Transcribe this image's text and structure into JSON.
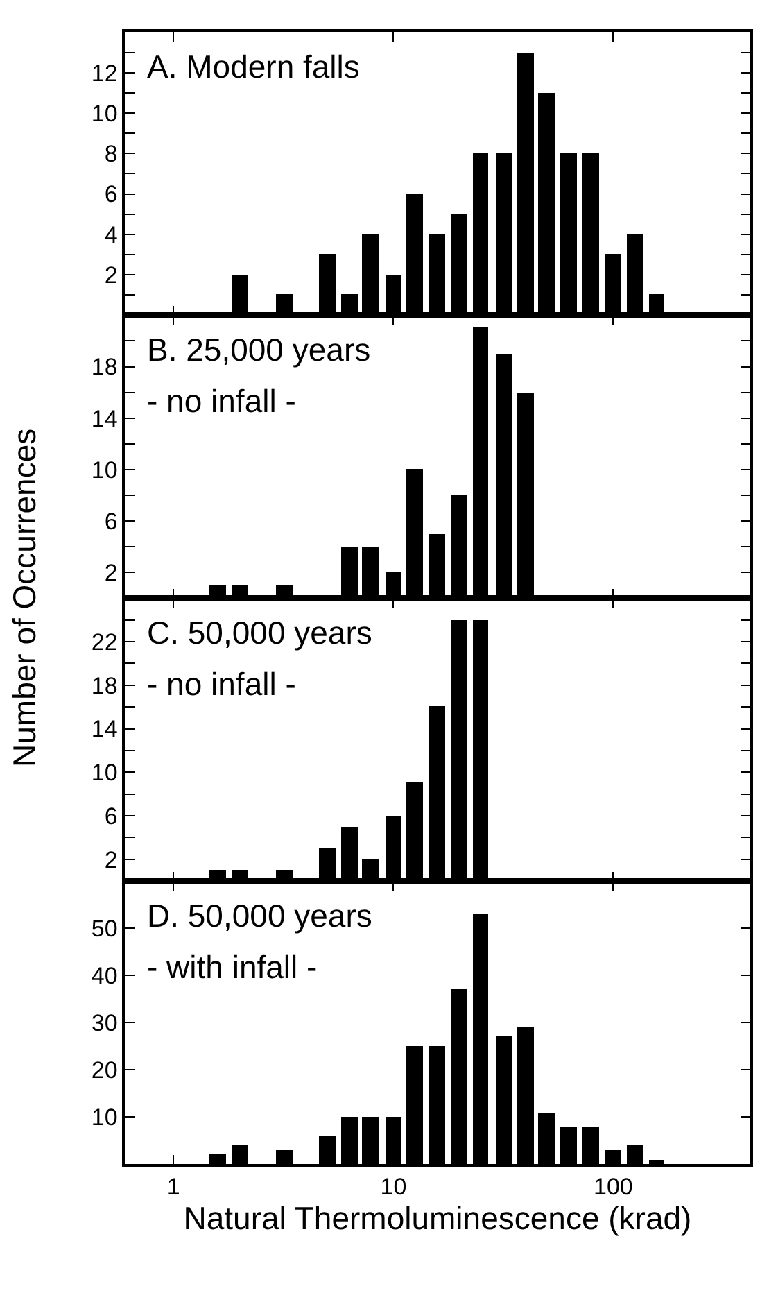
{
  "chart_data": [
    {
      "type": "bar",
      "title": "A. Modern falls",
      "ylabel": "Number of Occurrences",
      "log": "x",
      "tick_labels": "y",
      "x": [
        2,
        3.2,
        5,
        6.3,
        7.9,
        10,
        12.6,
        15.8,
        20,
        25,
        32,
        40,
        50,
        63,
        79,
        100,
        126,
        158
      ],
      "series": [
        {
          "color": "#000000",
          "values": [
            2,
            1,
            3,
            1,
            4,
            2,
            6,
            4,
            5,
            8,
            8,
            13,
            11,
            8,
            8,
            3,
            4,
            1
          ]
        }
      ],
      "xlim": [
        0.6,
        420
      ],
      "xticks": [
        1,
        10,
        100
      ],
      "ylim": [
        0,
        14
      ],
      "yticks": [
        {
          "value": 1,
          "label": null
        },
        2,
        {
          "value": 3,
          "label": null
        },
        4,
        {
          "value": 5,
          "label": null
        },
        6,
        {
          "value": 7,
          "label": null
        },
        8,
        {
          "value": 9,
          "label": null
        },
        10,
        {
          "value": 11,
          "label": null
        },
        12,
        {
          "value": 13,
          "label": null
        }
      ]
    },
    {
      "type": "bar",
      "title": "B. 25,000 years",
      "subtitle": "- no infall -",
      "log": "x",
      "tick_labels": "y",
      "x": [
        1.6,
        2,
        3.2,
        6.3,
        7.9,
        10,
        12.6,
        15.8,
        20,
        25,
        32,
        40
      ],
      "series": [
        {
          "color": "#000000",
          "values": [
            1,
            1,
            1,
            4,
            4,
            2,
            10,
            5,
            8,
            21,
            19,
            16
          ]
        }
      ],
      "xlim": [
        0.6,
        420
      ],
      "xticks": [
        1,
        10,
        100
      ],
      "ylim": [
        0,
        22
      ],
      "yticks": [
        2,
        {
          "value": 4,
          "label": null
        },
        6,
        {
          "value": 8,
          "label": null
        },
        10,
        {
          "value": 12,
          "label": null
        },
        14,
        {
          "value": 16,
          "label": null
        },
        18,
        {
          "value": 20,
          "label": null
        }
      ]
    },
    {
      "type": "bar",
      "title": "C. 50,000 years",
      "subtitle": "- no infall -",
      "log": "x",
      "tick_labels": "y",
      "x": [
        1.6,
        2,
        3.2,
        5,
        6.3,
        7.9,
        10,
        12.6,
        15.8,
        20,
        25
      ],
      "series": [
        {
          "color": "#000000",
          "values": [
            1,
            1,
            1,
            3,
            5,
            2,
            6,
            9,
            16,
            24,
            24
          ]
        }
      ],
      "xlim": [
        0.6,
        420
      ],
      "xticks": [
        1,
        10,
        100
      ],
      "ylim": [
        0,
        26
      ],
      "yticks": [
        2,
        {
          "value": 4,
          "label": null
        },
        6,
        {
          "value": 8,
          "label": null
        },
        10,
        {
          "value": 12,
          "label": null
        },
        14,
        {
          "value": 16,
          "label": null
        },
        18,
        {
          "value": 20,
          "label": null
        },
        22,
        {
          "value": 24,
          "label": null
        }
      ]
    },
    {
      "type": "bar",
      "title": "D. 50,000 years",
      "subtitle": "- with infall -",
      "xlabel": "Natural Thermoluminescence (krad)",
      "log": "x",
      "x": [
        1.6,
        2,
        3.2,
        5,
        6.3,
        7.9,
        10,
        12.6,
        15.8,
        20,
        25,
        32,
        40,
        50,
        63,
        79,
        100,
        126,
        158
      ],
      "series": [
        {
          "color": "#000000",
          "values": [
            2,
            4,
            3,
            6,
            10,
            10,
            10,
            25,
            25,
            37,
            53,
            27,
            29,
            11,
            8,
            8,
            3,
            4,
            1
          ]
        }
      ],
      "xlim": [
        0.6,
        420
      ],
      "xticks": [
        1,
        10,
        100
      ],
      "ylim": [
        0,
        60
      ],
      "yticks": [
        10,
        20,
        30,
        40,
        50
      ]
    }
  ]
}
